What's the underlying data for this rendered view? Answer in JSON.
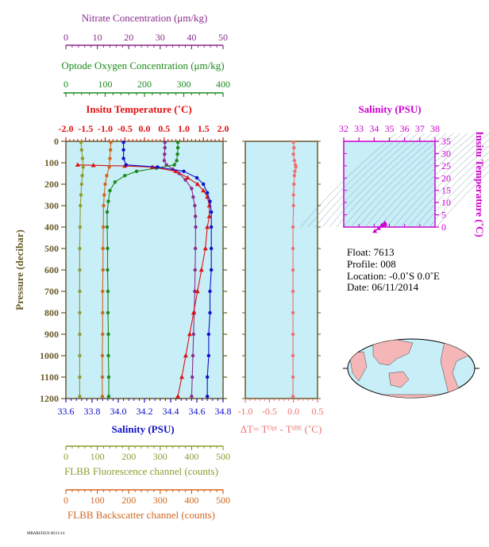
{
  "colors": {
    "nitrate": "#8b2c8b",
    "oxygen": "#1a8a1a",
    "temperature": "#e01010",
    "salinity": "#1010c8",
    "fluorescence": "#8f9a2e",
    "backscatter": "#d0661e",
    "delta_t": "#f07070",
    "magenta": "#d000d0",
    "panel_bg": "#c8eef8",
    "frame": "#6b5a2a"
  },
  "axes": {
    "nitrate_title": "Nitrate Concentration (μm/kg)",
    "oxygen_title": "Optode Oxygen Concentration (μm/kg)",
    "temp_title": "Insitu Temperature (˚C)",
    "pressure_title": "Pressure (decibar)",
    "salinity_title": "Salinity (PSU)",
    "fluor_title": "FLBB Fluorescence channel (counts)",
    "backscatter_title": "FLBB Backscatter channel (counts)",
    "dt_title": "ΔT= Tᴼᵖᵗ - Tˢᴮᴱ (˚C)",
    "ts_salinity_title": "Salinity (PSU)",
    "ts_temp_title": "Insitu Temperature (˚C)"
  },
  "info": {
    "float": "Float:  7613",
    "profile": "Profile:  008",
    "location": "Location:  -0.0˚S   0.0˚E",
    "date": "Date:  06/11/2014"
  },
  "footer_stamp": "MBARI/ISUS 06/11/14",
  "chart_data": [
    {
      "type": "line",
      "title": "",
      "ylabel": "Pressure (decibar)",
      "ylim": [
        1200,
        0
      ],
      "yticks": [
        0,
        100,
        200,
        300,
        400,
        500,
        600,
        700,
        800,
        900,
        1000,
        1100,
        1200
      ],
      "axes_ranges": {
        "nitrate": [
          0,
          50
        ],
        "oxygen": [
          0,
          400
        ],
        "temperature": [
          -2.0,
          2.0
        ],
        "salinity": [
          33.6,
          34.8
        ],
        "fluorescence": [
          0,
          500
        ],
        "backscatter": [
          0,
          500
        ]
      },
      "tick_labels": {
        "nitrate": [
          "0",
          "10",
          "20",
          "30",
          "40",
          "50"
        ],
        "oxygen": [
          "0",
          "100",
          "200",
          "300",
          "400"
        ],
        "temperature": [
          "-2.0",
          "-1.5",
          "-1.0",
          "-0.5",
          "0.0",
          "0.5",
          "1.0",
          "1.5",
          "2.0"
        ],
        "salinity": [
          "33.6",
          "33.8",
          "34.0",
          "34.2",
          "34.4",
          "34.6",
          "34.8"
        ],
        "fluorescence": [
          "0",
          "100",
          "200",
          "300",
          "400",
          "500"
        ],
        "backscatter": [
          "0",
          "100",
          "200",
          "300",
          "400",
          "500"
        ]
      },
      "series": [
        {
          "name": "Nitrate",
          "axis": "nitrate",
          "points": [
            [
              31.5,
              5
            ],
            [
              31.5,
              30
            ],
            [
              31.4,
              60
            ],
            [
              31.3,
              90
            ],
            [
              32,
              110
            ],
            [
              34,
              130
            ],
            [
              36,
              150
            ],
            [
              38,
              180
            ],
            [
              40,
              220
            ],
            [
              40.5,
              260
            ],
            [
              41,
              300
            ],
            [
              41.2,
              350
            ],
            [
              41.3,
              400
            ],
            [
              41.2,
              500
            ],
            [
              41.1,
              600
            ],
            [
              41,
              700
            ],
            [
              40.8,
              800
            ],
            [
              40.6,
              900
            ],
            [
              40.4,
              1000
            ],
            [
              40.2,
              1100
            ],
            [
              40,
              1190
            ]
          ]
        },
        {
          "name": "Optode Oxygen",
          "axis": "oxygen",
          "points": [
            [
              285,
              5
            ],
            [
              285,
              30
            ],
            [
              284,
              60
            ],
            [
              282,
              90
            ],
            [
              276,
              110
            ],
            [
              230,
              125
            ],
            [
              180,
              140
            ],
            [
              150,
              160
            ],
            [
              125,
              190
            ],
            [
              112,
              230
            ],
            [
              108,
              280
            ],
            [
              105,
              330
            ],
            [
              105,
              400
            ],
            [
              106,
              500
            ],
            [
              106,
              600
            ],
            [
              107,
              700
            ],
            [
              107,
              800
            ],
            [
              108,
              900
            ],
            [
              108,
              1000
            ],
            [
              109,
              1100
            ],
            [
              109,
              1190
            ]
          ]
        },
        {
          "name": "Insitu Temperature",
          "axis": "temperature",
          "points": [
            [
              -1.7,
              110
            ],
            [
              -1.3,
              112
            ],
            [
              -0.5,
              115
            ],
            [
              0.2,
              120
            ],
            [
              0.8,
              140
            ],
            [
              1.1,
              170
            ],
            [
              1.35,
              200
            ],
            [
              1.5,
              230
            ],
            [
              1.6,
              260
            ],
            [
              1.65,
              300
            ],
            [
              1.65,
              350
            ],
            [
              1.6,
              400
            ],
            [
              1.55,
              500
            ],
            [
              1.45,
              600
            ],
            [
              1.35,
              700
            ],
            [
              1.25,
              800
            ],
            [
              1.15,
              900
            ],
            [
              1.05,
              1000
            ],
            [
              0.95,
              1100
            ],
            [
              0.85,
              1190
            ]
          ]
        },
        {
          "name": "Salinity",
          "axis": "salinity",
          "points": [
            [
              34.04,
              5
            ],
            [
              34.04,
              40
            ],
            [
              34.04,
              80
            ],
            [
              34.06,
              110
            ],
            [
              34.3,
              120
            ],
            [
              34.5,
              140
            ],
            [
              34.6,
              170
            ],
            [
              34.65,
              200
            ],
            [
              34.68,
              240
            ],
            [
              34.7,
              280
            ],
            [
              34.71,
              330
            ],
            [
              34.71,
              400
            ],
            [
              34.71,
              500
            ],
            [
              34.71,
              600
            ],
            [
              34.7,
              700
            ],
            [
              34.7,
              800
            ],
            [
              34.69,
              900
            ],
            [
              34.69,
              1000
            ],
            [
              34.68,
              1100
            ],
            [
              34.68,
              1190
            ]
          ]
        },
        {
          "name": "FLBB Fluorescence",
          "axis": "fluorescence",
          "points": [
            [
              48,
              5
            ],
            [
              50,
              40
            ],
            [
              53,
              80
            ],
            [
              55,
              120
            ],
            [
              52,
              160
            ],
            [
              50,
              200
            ],
            [
              48,
              250
            ],
            [
              46,
              300
            ],
            [
              45,
              400
            ],
            [
              44,
              500
            ],
            [
              44,
              600
            ],
            [
              44,
              700
            ],
            [
              44,
              800
            ],
            [
              44,
              900
            ],
            [
              44,
              1000
            ],
            [
              44,
              1100
            ],
            [
              44,
              1190
            ]
          ]
        },
        {
          "name": "FLBB Backscatter",
          "axis": "backscatter",
          "points": [
            [
              143,
              5
            ],
            [
              142,
              40
            ],
            [
              140,
              80
            ],
            [
              138,
              120
            ],
            [
              130,
              160
            ],
            [
              125,
              200
            ],
            [
              122,
              250
            ],
            [
              120,
              300
            ],
            [
              119,
              400
            ],
            [
              118,
              500
            ],
            [
              118,
              600
            ],
            [
              117,
              700
            ],
            [
              117,
              800
            ],
            [
              117,
              900
            ],
            [
              116,
              1000
            ],
            [
              116,
              1100
            ],
            [
              116,
              1190
            ]
          ]
        }
      ]
    },
    {
      "type": "line",
      "title": "",
      "xlabel": "ΔT= Tᴼᵖᵗ - Tˢᴮᴱ (˚C)",
      "xlim": [
        -1.0,
        0.5
      ],
      "xticks": [
        "-1.0",
        "-0.5",
        "0.0",
        "0.5"
      ],
      "ylim": [
        1200,
        0
      ],
      "series": [
        {
          "name": "ΔT",
          "points": [
            [
              0.0,
              5
            ],
            [
              0.01,
              30
            ],
            [
              0.0,
              60
            ],
            [
              0.02,
              90
            ],
            [
              0.04,
              110
            ],
            [
              0.05,
              120
            ],
            [
              0.03,
              140
            ],
            [
              0.02,
              160
            ],
            [
              0.01,
              200
            ],
            [
              0.0,
              250
            ],
            [
              0.0,
              300
            ],
            [
              -0.01,
              400
            ],
            [
              -0.01,
              500
            ],
            [
              -0.01,
              600
            ],
            [
              -0.01,
              700
            ],
            [
              -0.01,
              800
            ],
            [
              -0.01,
              900
            ],
            [
              -0.01,
              1000
            ],
            [
              -0.01,
              1100
            ],
            [
              -0.01,
              1190
            ]
          ]
        }
      ]
    },
    {
      "type": "scatter",
      "title": "",
      "xlabel": "Salinity (PSU)",
      "ylabel": "Insitu Temperature (˚C)",
      "xlim": [
        32,
        38
      ],
      "ylim": [
        0,
        35
      ],
      "xticks": [
        "32",
        "33",
        "34",
        "35",
        "36",
        "37",
        "38"
      ],
      "yticks": [
        "0",
        "5",
        "10",
        "15",
        "20",
        "25",
        "30",
        "35"
      ],
      "series": [
        {
          "name": "T-S",
          "points": [
            [
              34.04,
              -1.7
            ],
            [
              34.3,
              -0.5
            ],
            [
              34.5,
              0.8
            ],
            [
              34.65,
              1.35
            ],
            [
              34.7,
              1.6
            ],
            [
              34.71,
              1.65
            ],
            [
              34.7,
              1.4
            ],
            [
              34.68,
              0.9
            ]
          ]
        }
      ]
    }
  ]
}
